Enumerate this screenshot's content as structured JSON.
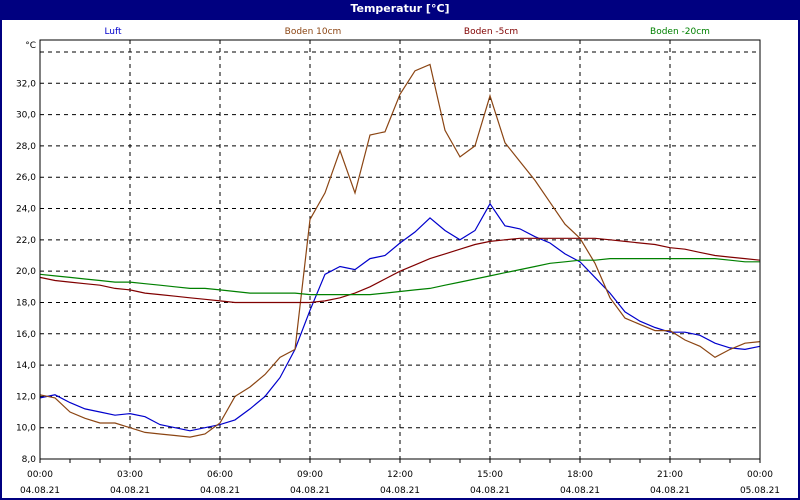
{
  "window": {
    "title": "Temperatur [°C]"
  },
  "chart_data": {
    "type": "line",
    "title": "Temperatur [°C]",
    "ylabel": "°C",
    "xlabel": "",
    "ylim": [
      8.0,
      34.0
    ],
    "yticks": [
      "8,0",
      "10,0",
      "12,0",
      "14,0",
      "16,0",
      "18,0",
      "20,0",
      "22,0",
      "24,0",
      "26,0",
      "28,0",
      "30,0",
      "32,0"
    ],
    "xticks": [
      {
        "time": "00:00",
        "date": "04.08.21"
      },
      {
        "time": "03:00",
        "date": "04.08.21"
      },
      {
        "time": "06:00",
        "date": "04.08.21"
      },
      {
        "time": "09:00",
        "date": "04.08.21"
      },
      {
        "time": "12:00",
        "date": "04.08.21"
      },
      {
        "time": "15:00",
        "date": "04.08.21"
      },
      {
        "time": "18:00",
        "date": "04.08.21"
      },
      {
        "time": "21:00",
        "date": "04.08.21"
      },
      {
        "time": "00:00",
        "date": "05.08.21"
      }
    ],
    "grid": true,
    "legend_position": "top",
    "x_hours": [
      0,
      0.5,
      1,
      1.5,
      2,
      2.5,
      3,
      3.5,
      4,
      4.5,
      5,
      5.5,
      6,
      6.5,
      7,
      7.5,
      8,
      8.5,
      9,
      9.5,
      10,
      10.5,
      11,
      11.5,
      12,
      12.5,
      13,
      13.5,
      14,
      14.5,
      15,
      15.5,
      16,
      16.5,
      17,
      17.5,
      18,
      18.5,
      19,
      19.5,
      20,
      20.5,
      21,
      21.5,
      22,
      22.5,
      23,
      23.5,
      24
    ],
    "series": [
      {
        "name": "Luft",
        "color": "#0000CC",
        "values": [
          11.9,
          12.1,
          11.6,
          11.2,
          11.0,
          10.8,
          10.9,
          10.7,
          10.2,
          10.0,
          9.8,
          10.0,
          10.2,
          10.5,
          11.2,
          12.0,
          13.2,
          15.0,
          17.5,
          19.8,
          20.3,
          20.1,
          20.8,
          21.0,
          21.8,
          22.5,
          23.4,
          22.6,
          22.0,
          22.6,
          24.3,
          22.9,
          22.7,
          22.2,
          21.8,
          21.1,
          20.6,
          19.6,
          18.6,
          17.4,
          16.8,
          16.4,
          16.1,
          16.1,
          15.9,
          15.4,
          15.1,
          15.0,
          15.2
        ]
      },
      {
        "name": "Boden 10cm",
        "color": "#8B4513",
        "values": [
          12.1,
          11.9,
          11.0,
          10.6,
          10.3,
          10.3,
          10.0,
          9.7,
          9.6,
          9.5,
          9.4,
          9.6,
          10.3,
          12.0,
          12.6,
          13.4,
          14.5,
          15.0,
          23.3,
          25.0,
          27.7,
          25.0,
          28.7,
          28.9,
          31.3,
          32.8,
          33.2,
          29.0,
          27.3,
          28.0,
          31.2,
          28.2,
          27.0,
          25.8,
          24.4,
          23.0,
          22.1,
          20.5,
          18.3,
          17.0,
          16.6,
          16.2,
          16.2,
          15.6,
          15.2,
          14.5,
          15.0,
          15.4,
          15.5
        ]
      },
      {
        "name": "Boden -5cm",
        "color": "#800000",
        "values": [
          19.6,
          19.4,
          19.3,
          19.2,
          19.1,
          18.9,
          18.8,
          18.6,
          18.5,
          18.4,
          18.3,
          18.2,
          18.1,
          18.0,
          18.0,
          18.0,
          18.0,
          18.0,
          18.0,
          18.1,
          18.3,
          18.6,
          19.0,
          19.5,
          20.0,
          20.4,
          20.8,
          21.1,
          21.4,
          21.7,
          21.9,
          22.0,
          22.1,
          22.1,
          22.1,
          22.1,
          22.1,
          22.1,
          22.0,
          21.9,
          21.8,
          21.7,
          21.5,
          21.4,
          21.2,
          21.0,
          20.9,
          20.8,
          20.7
        ]
      },
      {
        "name": "Boden -20cm",
        "color": "#008000",
        "values": [
          19.8,
          19.7,
          19.6,
          19.5,
          19.4,
          19.3,
          19.3,
          19.2,
          19.1,
          19.0,
          18.9,
          18.9,
          18.8,
          18.7,
          18.6,
          18.6,
          18.6,
          18.6,
          18.5,
          18.5,
          18.5,
          18.5,
          18.5,
          18.6,
          18.7,
          18.8,
          18.9,
          19.1,
          19.3,
          19.5,
          19.7,
          19.9,
          20.1,
          20.3,
          20.5,
          20.6,
          20.7,
          20.7,
          20.8,
          20.8,
          20.8,
          20.8,
          20.8,
          20.8,
          20.8,
          20.8,
          20.7,
          20.6,
          20.6
        ]
      }
    ]
  }
}
